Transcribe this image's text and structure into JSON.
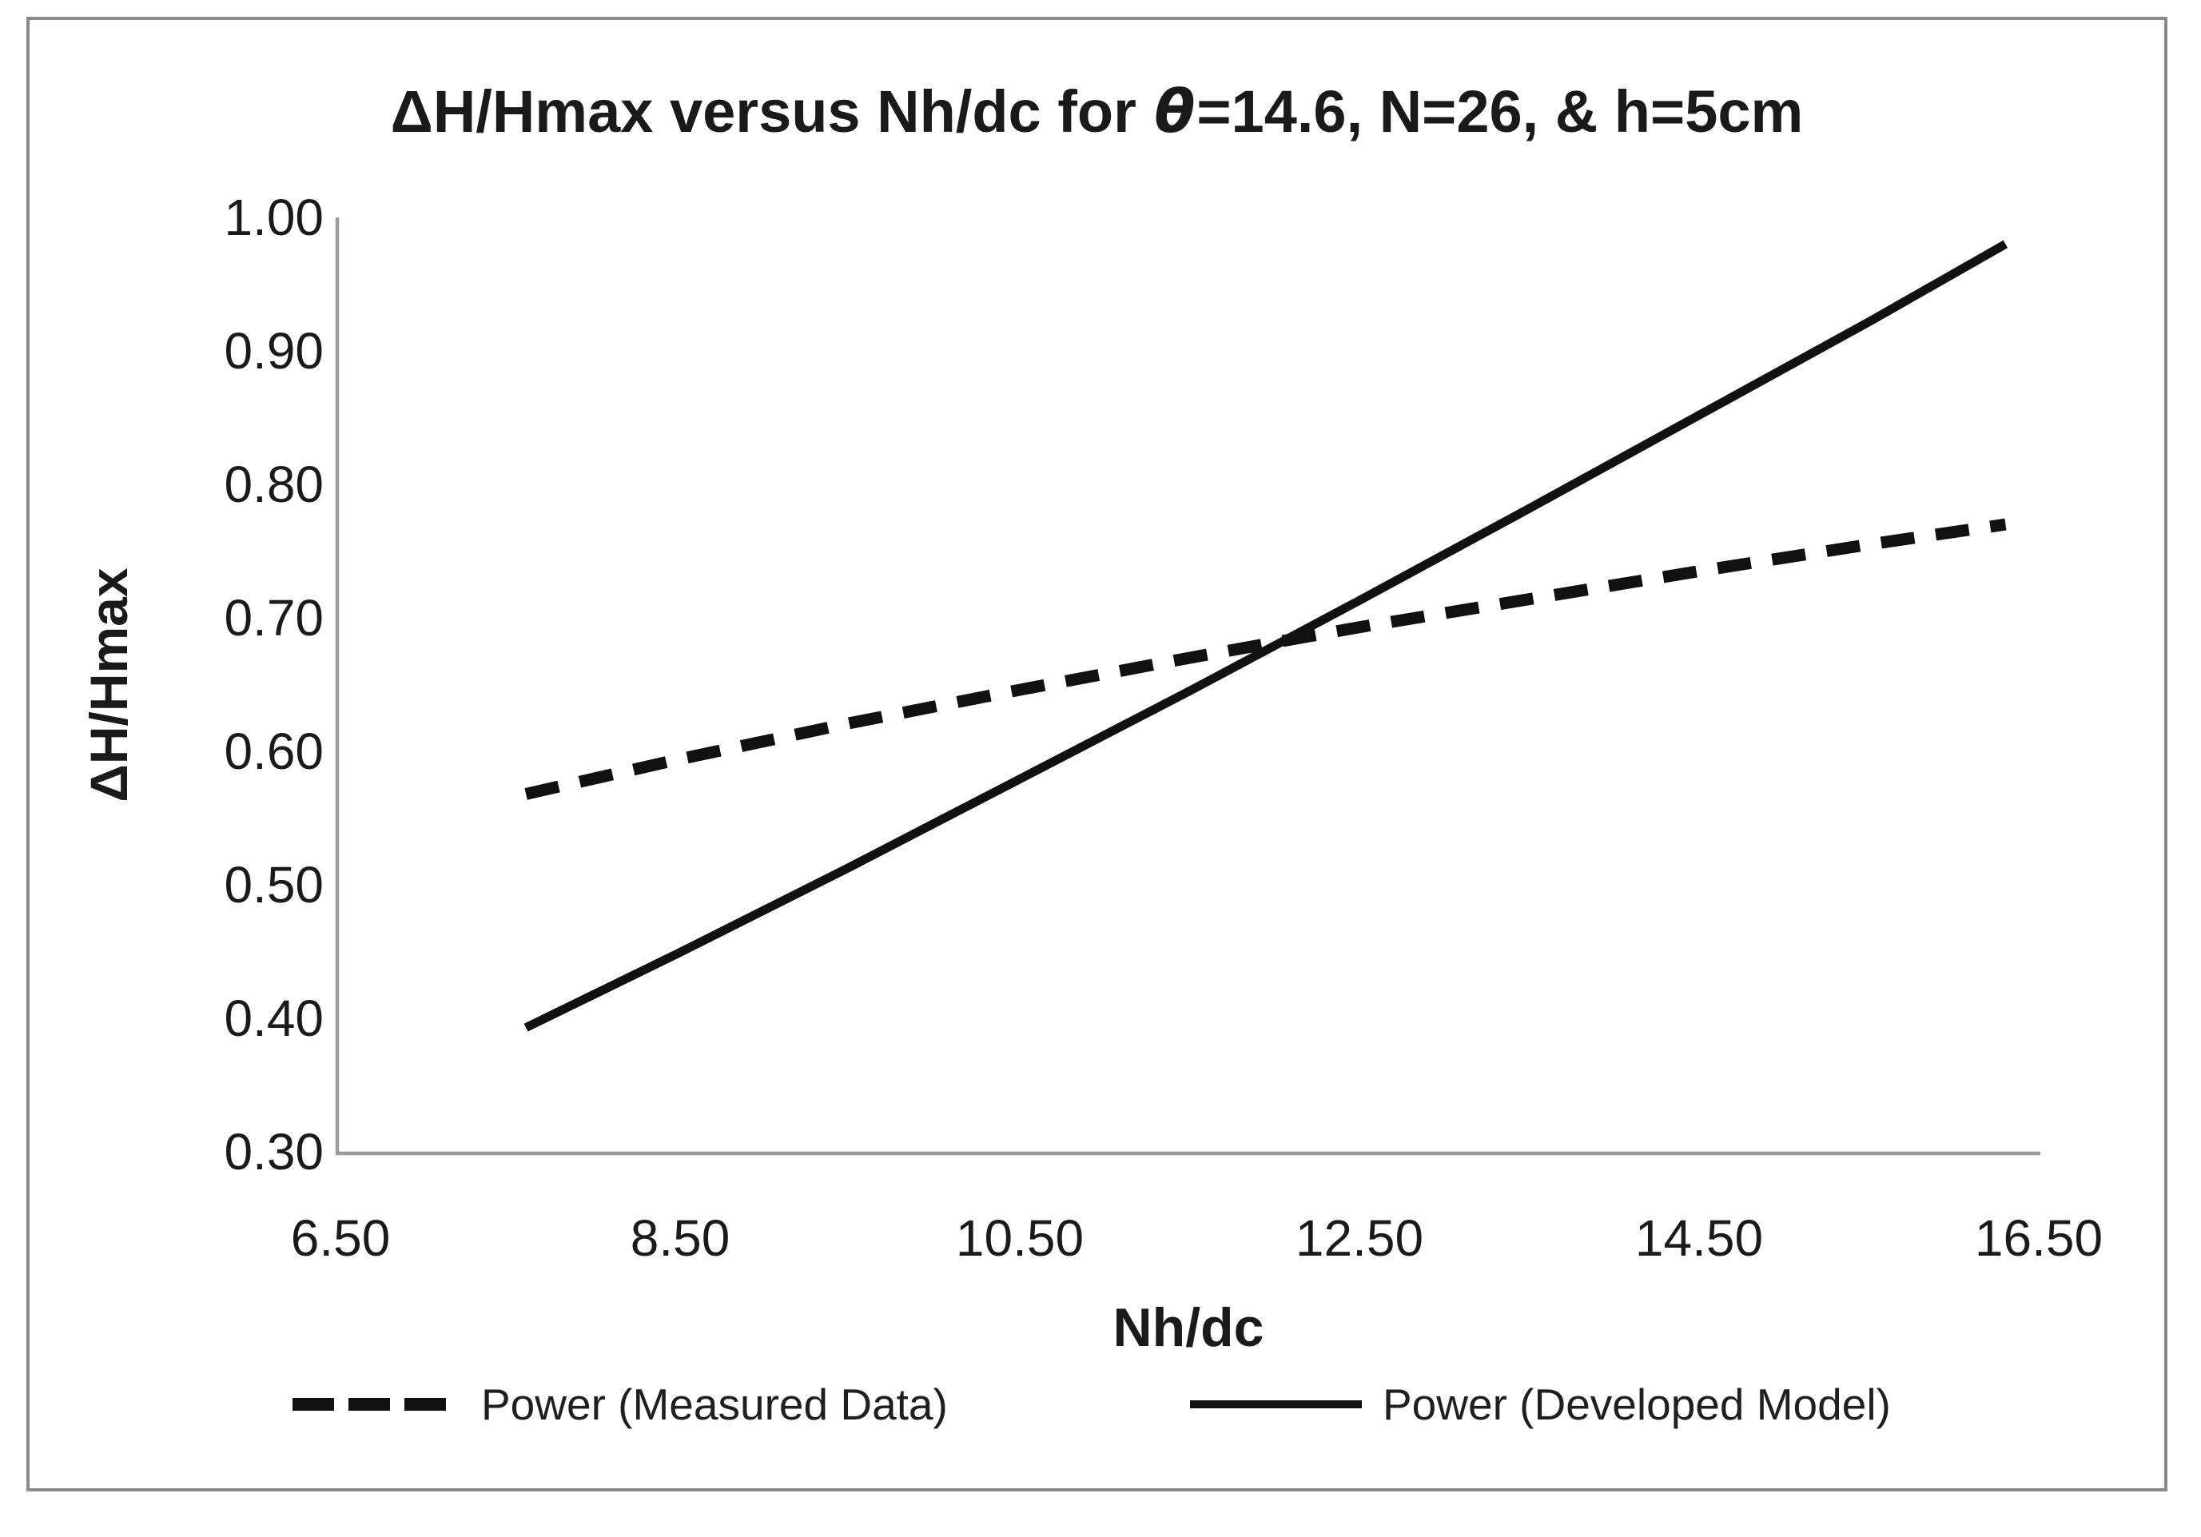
{
  "figure": {
    "title_pre": "ΔH/Hmax versus Nh/dc for ",
    "title_theta": "θ",
    "title_post": "=14.6, N=26, & h=5cm"
  },
  "axes": {
    "x_label": "Nh/dc",
    "y_label": "ΔH/Hmax",
    "y_ticks": [
      "1.00",
      "0.90",
      "0.80",
      "0.70",
      "0.60",
      "0.50",
      "0.40",
      "0.30"
    ],
    "x_ticks": [
      "6.50",
      "8.50",
      "10.50",
      "12.50",
      "14.50",
      "16.50"
    ]
  },
  "legend": {
    "measured_label": "Power (Measured Data)",
    "model_label": "Power (Developed Model)"
  },
  "colors": {
    "line_color": "#111111",
    "axis_color": "#9a9a9a",
    "border_color": "#898989",
    "text_color": "#1a1a1a"
  },
  "chart_data": {
    "type": "line",
    "title": "ΔH/Hmax versus Nh/dc for θ=14.6, N=26, & h=5cm",
    "xlabel": "Nh/dc",
    "ylabel": "ΔH/Hmax",
    "xlim": [
      6.5,
      16.5
    ],
    "ylim": [
      0.3,
      1.0
    ],
    "x_tick_values": [
      6.5,
      8.5,
      10.5,
      12.5,
      14.5,
      16.5
    ],
    "y_tick_values": [
      1.0,
      0.9,
      0.8,
      0.7,
      0.6,
      0.5,
      0.4,
      0.3
    ],
    "grid": false,
    "legend_position": "bottom",
    "series": [
      {
        "name": "Power (Measured Data)",
        "style": "dashed",
        "trendline_type": "power",
        "x": [
          7.6,
          8.5,
          9.5,
          10.5,
          11.5,
          12.5,
          13.5,
          14.5,
          15.5,
          16.3
        ],
        "y": [
          0.568,
          0.594,
          0.621,
          0.646,
          0.67,
          0.693,
          0.714,
          0.735,
          0.755,
          0.77
        ]
      },
      {
        "name": "Power (Developed Model)",
        "style": "solid",
        "trendline_type": "power",
        "x": [
          7.6,
          8.5,
          9.5,
          10.5,
          11.5,
          12.5,
          13.5,
          14.5,
          15.5,
          16.3
        ],
        "y": [
          0.393,
          0.449,
          0.513,
          0.579,
          0.645,
          0.713,
          0.782,
          0.852,
          0.922,
          0.98
        ]
      }
    ]
  }
}
